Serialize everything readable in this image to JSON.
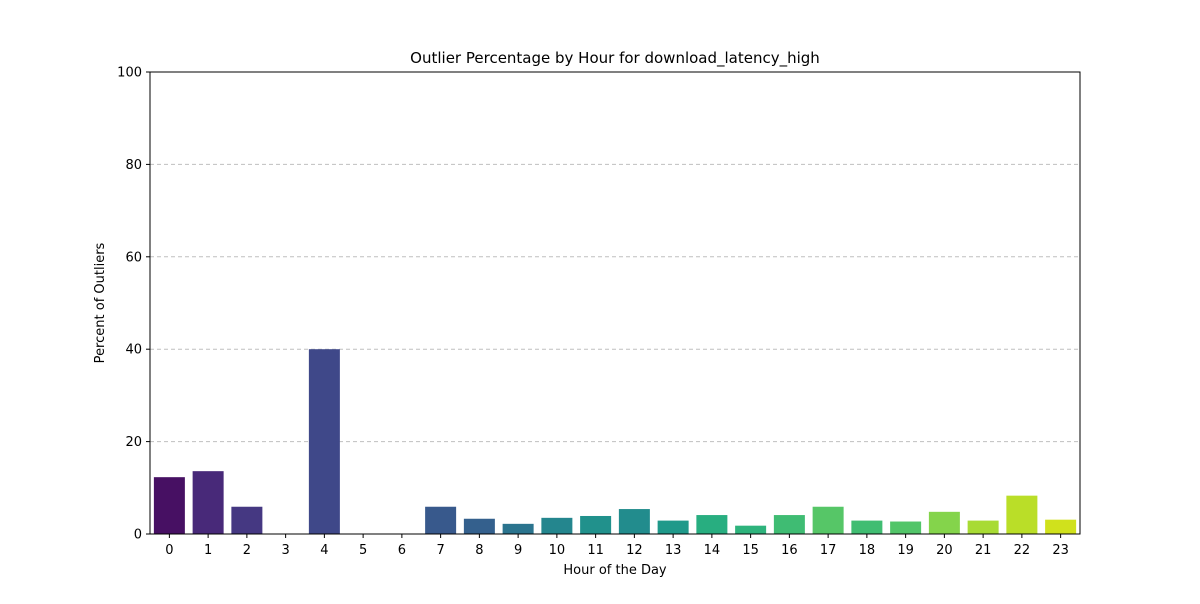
{
  "chart_data": {
    "type": "bar",
    "title": "Outlier Percentage by Hour for download_latency_high",
    "xlabel": "Hour of the Day",
    "ylabel": "Percent of Outliers",
    "categories": [
      "0",
      "1",
      "2",
      "3",
      "4",
      "5",
      "6",
      "7",
      "8",
      "9",
      "10",
      "11",
      "12",
      "13",
      "14",
      "15",
      "16",
      "17",
      "18",
      "19",
      "20",
      "21",
      "22",
      "23"
    ],
    "values": [
      12.3,
      13.6,
      5.9,
      0,
      40.0,
      0,
      0,
      5.9,
      3.3,
      2.2,
      3.5,
      3.9,
      5.4,
      2.9,
      4.1,
      1.8,
      4.1,
      5.9,
      2.9,
      2.7,
      4.8,
      2.9,
      8.3,
      3.1
    ],
    "ylim": [
      0,
      100
    ],
    "yticks": [
      0,
      20,
      40,
      60,
      80,
      100
    ],
    "grid": "y-dashed",
    "colors": [
      "#471063",
      "#482979",
      "#453882",
      "#3d4d8a",
      "#3f4889",
      "#2f6b8e",
      "#29788e",
      "#38598c",
      "#34608d",
      "#2b748e",
      "#24868e",
      "#21918c",
      "#228c8d",
      "#1f998a",
      "#28ae80",
      "#2eb37c",
      "#3fbc73",
      "#56c667",
      "#40bd72",
      "#52c569",
      "#84d44b",
      "#a8db34",
      "#bade28",
      "#d0e11c"
    ]
  }
}
